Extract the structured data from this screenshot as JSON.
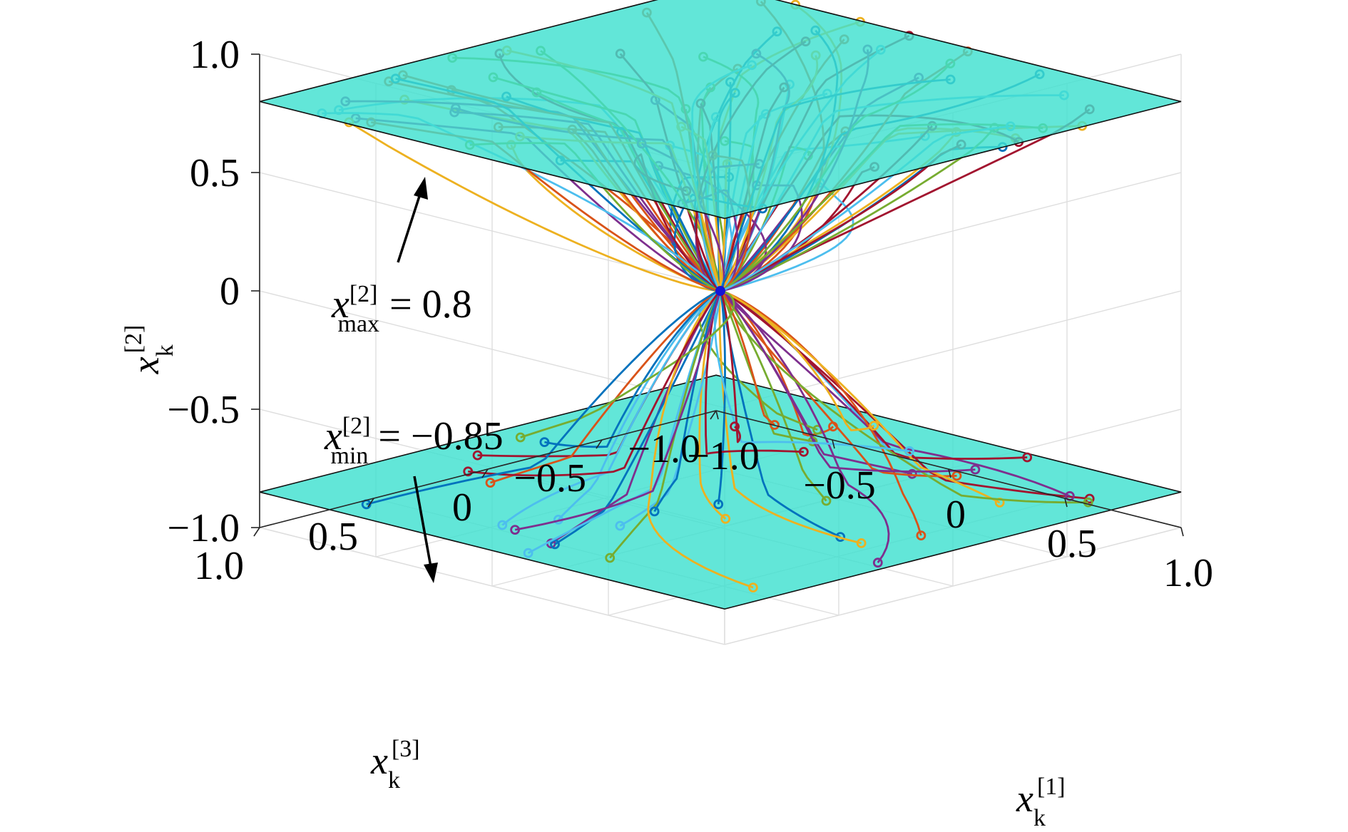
{
  "chart_data": {
    "type": "line3d",
    "title": "",
    "xlabel": {
      "base": "x",
      "sub": "k",
      "sup": "[1]"
    },
    "ylabel": {
      "base": "x",
      "sub": "k",
      "sup": "[3]"
    },
    "zlabel": {
      "base": "x",
      "sub": "k",
      "sup": "[2]"
    },
    "xlim": [
      -1.0,
      1.0
    ],
    "ylim": [
      -1.0,
      1.0
    ],
    "zlim": [
      -1.0,
      1.0
    ],
    "x_ticks": [
      "−1.0",
      "−0.5",
      "0",
      "0.5",
      "1.0"
    ],
    "y_ticks": [
      "1.0",
      "0.5",
      "0",
      "−0.5",
      "−1.0"
    ],
    "z_ticks": [
      "−1.0",
      "−0.5",
      "0",
      "0.5",
      "1.0"
    ],
    "grid": true,
    "constraint_planes": [
      {
        "name": "upper bound",
        "z": 0.8,
        "color": "#40E0D0"
      },
      {
        "name": "lower bound",
        "z": -0.85,
        "color": "#40E0D0"
      }
    ],
    "convergence_point": {
      "x": 0,
      "y": 0,
      "z": 0,
      "color": "#1515d6"
    },
    "annotations": [
      {
        "base": "x",
        "sup": "[2]",
        "sub": "max",
        "rest": " = 0.8"
      },
      {
        "base": "x",
        "sup": "[2]",
        "sub": "min",
        "rest": " = −0.85"
      }
    ],
    "series_colors": [
      "#0072BD",
      "#D95319",
      "#EDB120",
      "#7E2F8E",
      "#77AC30",
      "#4DBEEE",
      "#A2142F"
    ],
    "trajectory_summary": {
      "count": 130,
      "start_marker": "circle",
      "end": "origin",
      "upper_group": {
        "count": 90,
        "start_z": 0.8,
        "x_range": [
          -1.0,
          1.0
        ],
        "y_range": [
          -1.0,
          1.0
        ]
      },
      "lower_group": {
        "count": 40,
        "start_z": -0.85,
        "x_range": [
          -1.0,
          1.0
        ],
        "y_range": [
          -1.0,
          1.0
        ]
      }
    }
  }
}
